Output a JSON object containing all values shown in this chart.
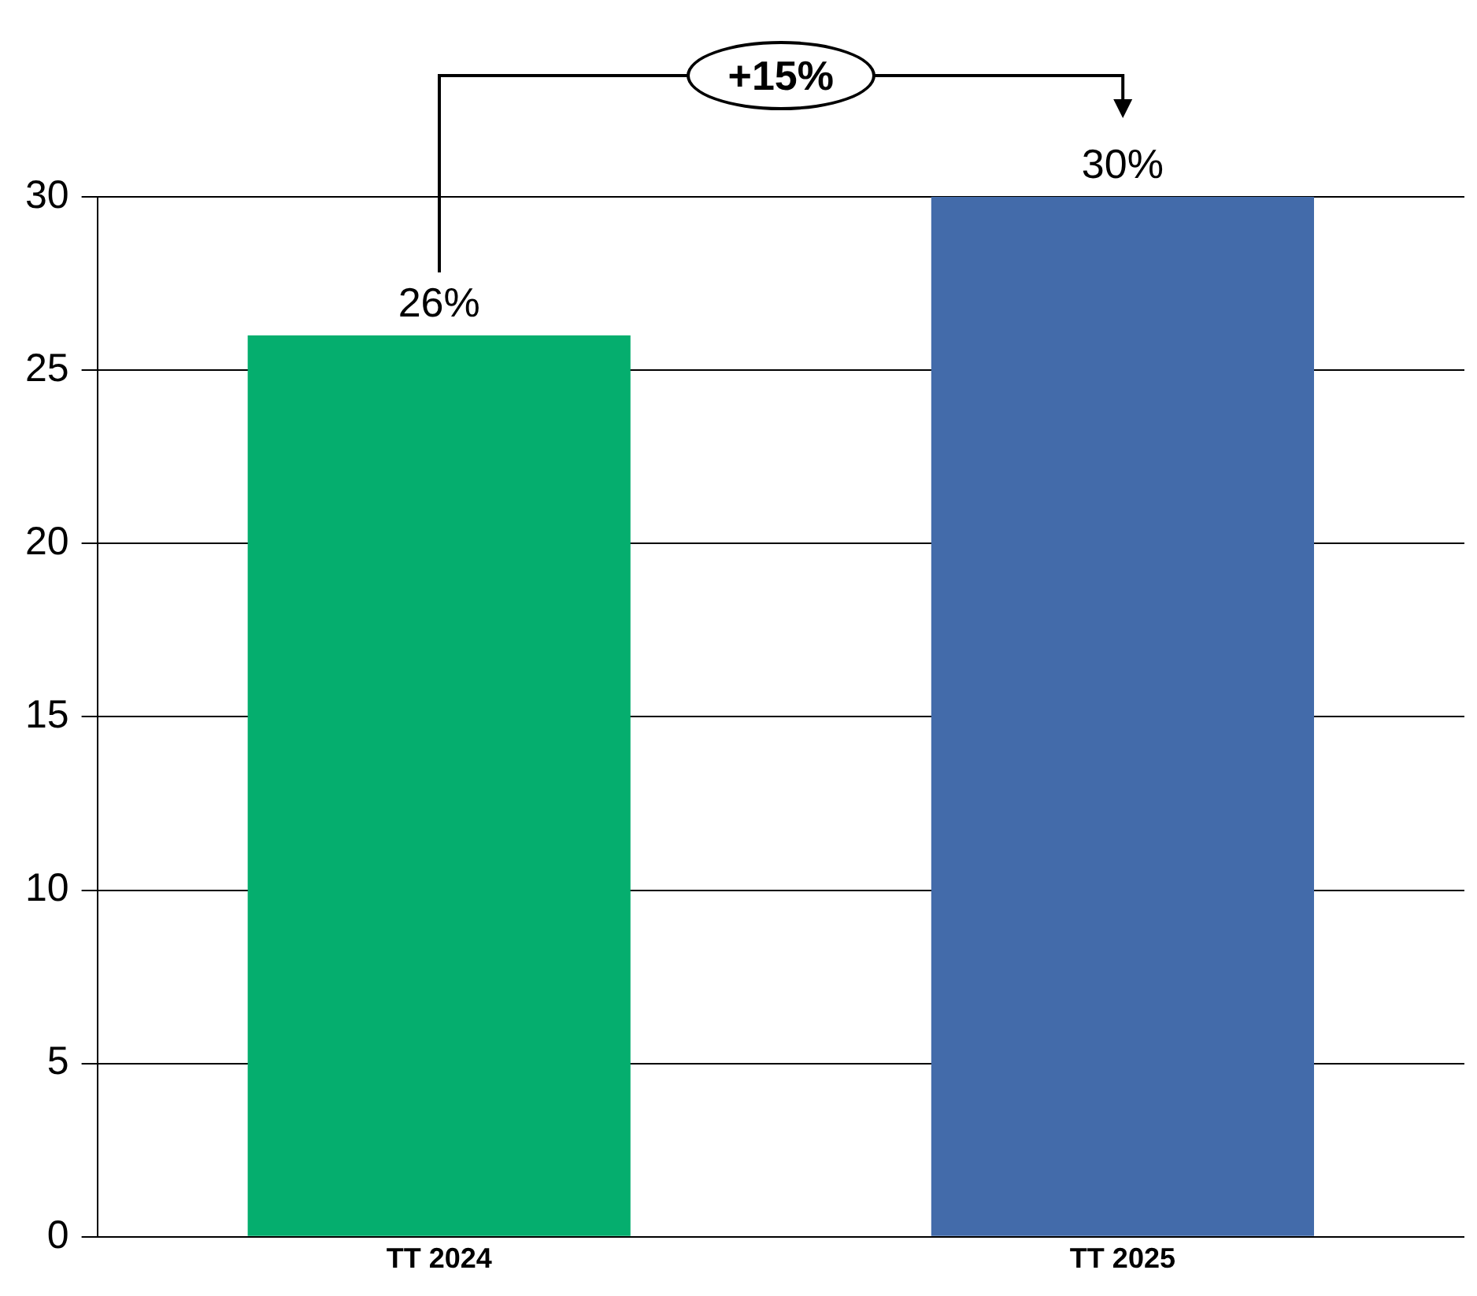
{
  "chart_data": {
    "type": "bar",
    "categories": [
      "TT 2024",
      "TT 2025"
    ],
    "values": [
      26,
      30
    ],
    "colors": [
      "#05ae6e",
      "#436baa"
    ],
    "value_labels": [
      "26%",
      "30%"
    ],
    "ylim": [
      0,
      30
    ],
    "yticks": [
      0,
      5,
      10,
      15,
      20,
      25,
      30
    ],
    "grid": "y",
    "annotations": [
      "+15%"
    ]
  }
}
